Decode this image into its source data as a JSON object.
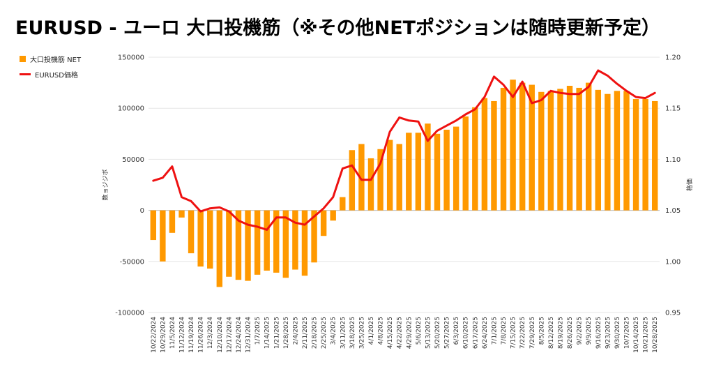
{
  "title": "EURUSD - ユーロ 大口投機筋（※その他NETポジションは随時更新予定）",
  "legend": {
    "bar_label": "大口投機筋  NET",
    "line_label": "EURUSD価格"
  },
  "colors": {
    "bar": "#ff9900",
    "line": "#ee1111",
    "grid": "#e6e6e6"
  },
  "chart_data": {
    "type": "bar",
    "left_axis_title": "数ョジジボ",
    "right_axis_title": "格価",
    "ylim_left": [
      -100000,
      150000
    ],
    "left_ticks": [
      -100000,
      -50000,
      0,
      50000,
      100000,
      150000
    ],
    "left_tick_labels": [
      "-100000",
      "-50000",
      "0",
      "50000",
      "100000",
      "150000"
    ],
    "ylim_right": [
      0.95,
      1.2
    ],
    "right_ticks": [
      0.95,
      1.0,
      1.05,
      1.1,
      1.15,
      1.2
    ],
    "right_tick_labels": [
      "0.95",
      "1.00",
      "1.05",
      "1.10",
      "1.15",
      "1.20"
    ],
    "grid": true,
    "legend_position": "left",
    "x_labels": [
      "10/22/2024",
      "10/29/2024",
      "11/5/2024",
      "11/12/2024",
      "11/19/2024",
      "11/26/2024",
      "12/3/2024",
      "12/10/2024",
      "12/17/2024",
      "12/24/2024",
      "12/31/2024",
      "1/7/2025",
      "1/14/2025",
      "1/21/2025",
      "1/28/2025",
      "2/4/2025",
      "2/11/2025",
      "2/18/2025",
      "2/25/2025",
      "3/4/2025",
      "3/11/2025",
      "3/18/2025",
      "3/25/2025",
      "4/1/2025",
      "4/8/2025",
      "4/15/2025",
      "4/22/2025",
      "4/29/2025",
      "5/6/2025",
      "5/13/2025",
      "5/20/2025",
      "5/27/2025",
      "6/3/2025",
      "6/10/2025",
      "6/17/2025",
      "6/24/2025",
      "7/1/2025",
      "7/8/2025",
      "7/15/2025",
      "7/22/2025",
      "7/29/2025",
      "8/5/2025",
      "8/12/2025",
      "8/19/2025",
      "8/26/2025",
      "9/2/2025",
      "9/9/2025",
      "9/16/2025",
      "9/23/2025",
      "9/30/2025",
      "10/7/2025",
      "10/14/2025",
      "10/21/2025",
      "10/28/2025"
    ],
    "series": [
      {
        "name": "大口投機筋  NET",
        "type": "bar",
        "axis": "left",
        "values": [
          -29000,
          -50000,
          -22000,
          -7000,
          -42000,
          -55000,
          -57000,
          -75000,
          -65000,
          -68000,
          -69000,
          -63000,
          -59000,
          -61000,
          -66000,
          -58000,
          -64000,
          -51000,
          -25000,
          -10000,
          13000,
          59000,
          65000,
          51000,
          60000,
          69000,
          65000,
          76000,
          76000,
          85000,
          75000,
          79000,
          82000,
          92000,
          101000,
          110000,
          107000,
          120000,
          128000,
          125000,
          123000,
          116000,
          117000,
          119000,
          122000,
          120000,
          125000,
          118000,
          114000,
          117000,
          117000,
          109000,
          109000,
          107000
        ]
      },
      {
        "name": "EURUSD価格",
        "type": "line",
        "axis": "right",
        "values": [
          1.079,
          1.082,
          1.093,
          1.063,
          1.059,
          1.049,
          1.052,
          1.053,
          1.049,
          1.04,
          1.036,
          1.034,
          1.031,
          1.043,
          1.043,
          1.038,
          1.036,
          1.044,
          1.052,
          1.063,
          1.091,
          1.094,
          1.08,
          1.08,
          1.096,
          1.127,
          1.141,
          1.138,
          1.137,
          1.118,
          1.128,
          1.133,
          1.138,
          1.144,
          1.149,
          1.161,
          1.181,
          1.173,
          1.161,
          1.176,
          1.155,
          1.158,
          1.167,
          1.165,
          1.164,
          1.164,
          1.171,
          1.187,
          1.182,
          1.174,
          1.167,
          1.161,
          1.16,
          1.165
        ]
      }
    ]
  }
}
